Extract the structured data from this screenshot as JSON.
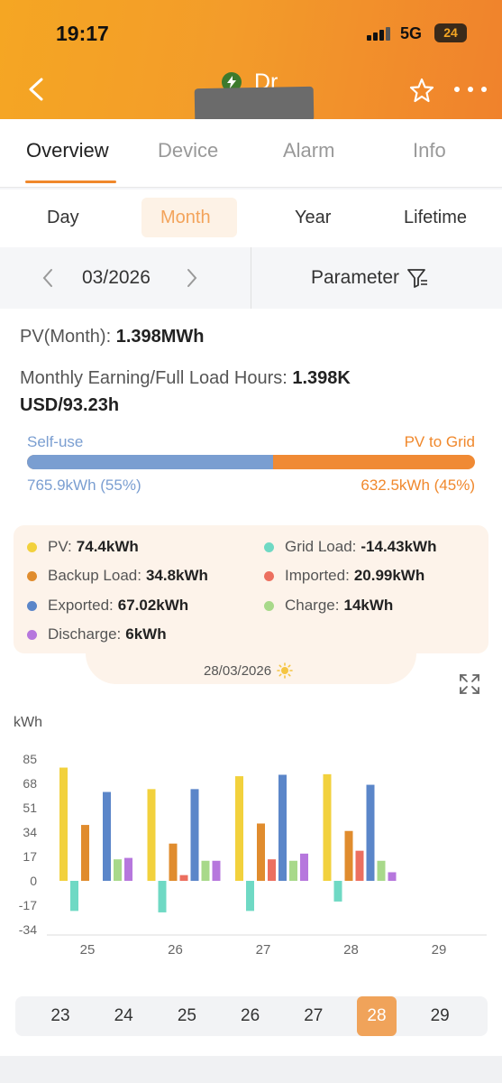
{
  "status_bar": {
    "time": "19:17",
    "network": "5G",
    "battery": "24"
  },
  "header": {
    "title": "Dr"
  },
  "tabs": [
    {
      "label": "Overview",
      "active": true
    },
    {
      "label": "Device",
      "active": false
    },
    {
      "label": "Alarm",
      "active": false
    },
    {
      "label": "Info",
      "active": false
    }
  ],
  "periods": [
    {
      "label": "Day",
      "active": false
    },
    {
      "label": "Month",
      "active": true
    },
    {
      "label": "Year",
      "active": false
    },
    {
      "label": "Lifetime",
      "active": false
    }
  ],
  "date_selector": {
    "value": "03/2026",
    "parameter_label": "Parameter"
  },
  "summary": {
    "pv_label": "PV(Month): ",
    "pv_value": "1.398MWh",
    "earning_label": "Monthly Earning/Full Load Hours: ",
    "earning_value": "1.398K USD/93.23h",
    "self_use_label": "Self-use",
    "grid_label": "PV to Grid",
    "self_use_value": "765.9kWh (55%)",
    "grid_value": "632.5kWh (45%)",
    "self_use_fraction": 0.55
  },
  "legend": [
    {
      "label": "PV:",
      "value": "74.4kWh",
      "color": "#f2d13d"
    },
    {
      "label": "Grid Load:",
      "value": "-14.43kWh",
      "color": "#6fd9c4"
    },
    {
      "label": "Backup Load:",
      "value": "34.8kWh",
      "color": "#e08c2e"
    },
    {
      "label": "Imported:",
      "value": "20.99kWh",
      "color": "#ec6f5f"
    },
    {
      "label": "Exported:",
      "value": "67.02kWh",
      "color": "#5b86c9"
    },
    {
      "label": "Charge:",
      "value": "14kWh",
      "color": "#a8d98a"
    },
    {
      "label": "Discharge:",
      "value": "6kWh",
      "color": "#b677dd"
    }
  ],
  "tooltip": {
    "date": "28/03/2026",
    "icon": "sun-icon"
  },
  "chart_data": {
    "type": "bar",
    "ylabel": "kWh",
    "ylim": [
      -34,
      85
    ],
    "yticks": [
      85,
      68,
      51,
      34,
      17,
      0,
      -17,
      -34
    ],
    "categories": [
      "25",
      "26",
      "27",
      "28",
      "29"
    ],
    "series": [
      {
        "name": "PV",
        "color": "#f2d13d",
        "values": [
          79,
          64,
          73,
          74.4,
          null
        ]
      },
      {
        "name": "Grid Load",
        "color": "#6fd9c4",
        "values": [
          -21,
          -22,
          -21,
          -14.43,
          null
        ]
      },
      {
        "name": "Backup Load",
        "color": "#e08c2e",
        "values": [
          39,
          26,
          40,
          34.8,
          null
        ]
      },
      {
        "name": "Imported",
        "color": "#ec6f5f",
        "values": [
          0,
          4,
          15,
          20.99,
          null
        ]
      },
      {
        "name": "Exported",
        "color": "#5b86c9",
        "values": [
          62,
          64,
          74,
          67.02,
          null
        ]
      },
      {
        "name": "Charge",
        "color": "#a8d98a",
        "values": [
          15,
          14,
          14,
          14,
          null
        ]
      },
      {
        "name": "Discharge",
        "color": "#b677dd",
        "values": [
          16,
          14,
          19,
          6,
          null
        ]
      }
    ],
    "grid": false,
    "legend": "top"
  },
  "day_selector": {
    "days": [
      "23",
      "24",
      "25",
      "26",
      "27",
      "28",
      "29"
    ],
    "active": "28"
  }
}
